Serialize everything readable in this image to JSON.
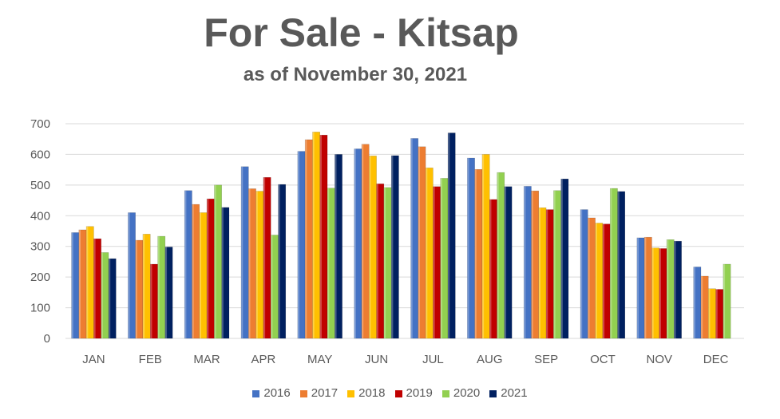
{
  "header": {
    "title": "For Sale - Kitsap",
    "subtitle": "as of November 30, 2021"
  },
  "chart_data": {
    "type": "bar",
    "title": "For Sale - Kitsap",
    "subtitle": "as of November 30, 2021",
    "xlabel": "",
    "ylabel": "",
    "ylim": [
      0,
      700
    ],
    "yticks": [
      0,
      100,
      200,
      300,
      400,
      500,
      600,
      700
    ],
    "grid": true,
    "legend_position": "bottom",
    "categories": [
      "JAN",
      "FEB",
      "MAR",
      "APR",
      "MAY",
      "JUN",
      "JUL",
      "AUG",
      "SEP",
      "OCT",
      "NOV",
      "DEC"
    ],
    "series": [
      {
        "name": "2016",
        "color": "#4472C4",
        "values": [
          345,
          410,
          482,
          560,
          610,
          618,
          652,
          588,
          496,
          420,
          328,
          233
        ]
      },
      {
        "name": "2017",
        "color": "#ED7D31",
        "values": [
          354,
          320,
          437,
          488,
          648,
          633,
          625,
          551,
          481,
          393,
          330,
          203
        ]
      },
      {
        "name": "2018",
        "color": "#FFC000",
        "values": [
          365,
          340,
          410,
          480,
          673,
          595,
          556,
          600,
          426,
          376,
          295,
          162
        ]
      },
      {
        "name": "2019",
        "color": "#C00000",
        "values": [
          325,
          242,
          455,
          525,
          663,
          504,
          495,
          453,
          420,
          373,
          293,
          160
        ]
      },
      {
        "name": "2020",
        "color": "#92D050",
        "values": [
          280,
          333,
          500,
          337,
          490,
          492,
          522,
          541,
          482,
          489,
          322,
          242
        ]
      },
      {
        "name": "2021",
        "color": "#002060",
        "values": [
          260,
          298,
          427,
          502,
          600,
          596,
          670,
          495,
          520,
          479,
          317,
          null
        ]
      }
    ]
  }
}
